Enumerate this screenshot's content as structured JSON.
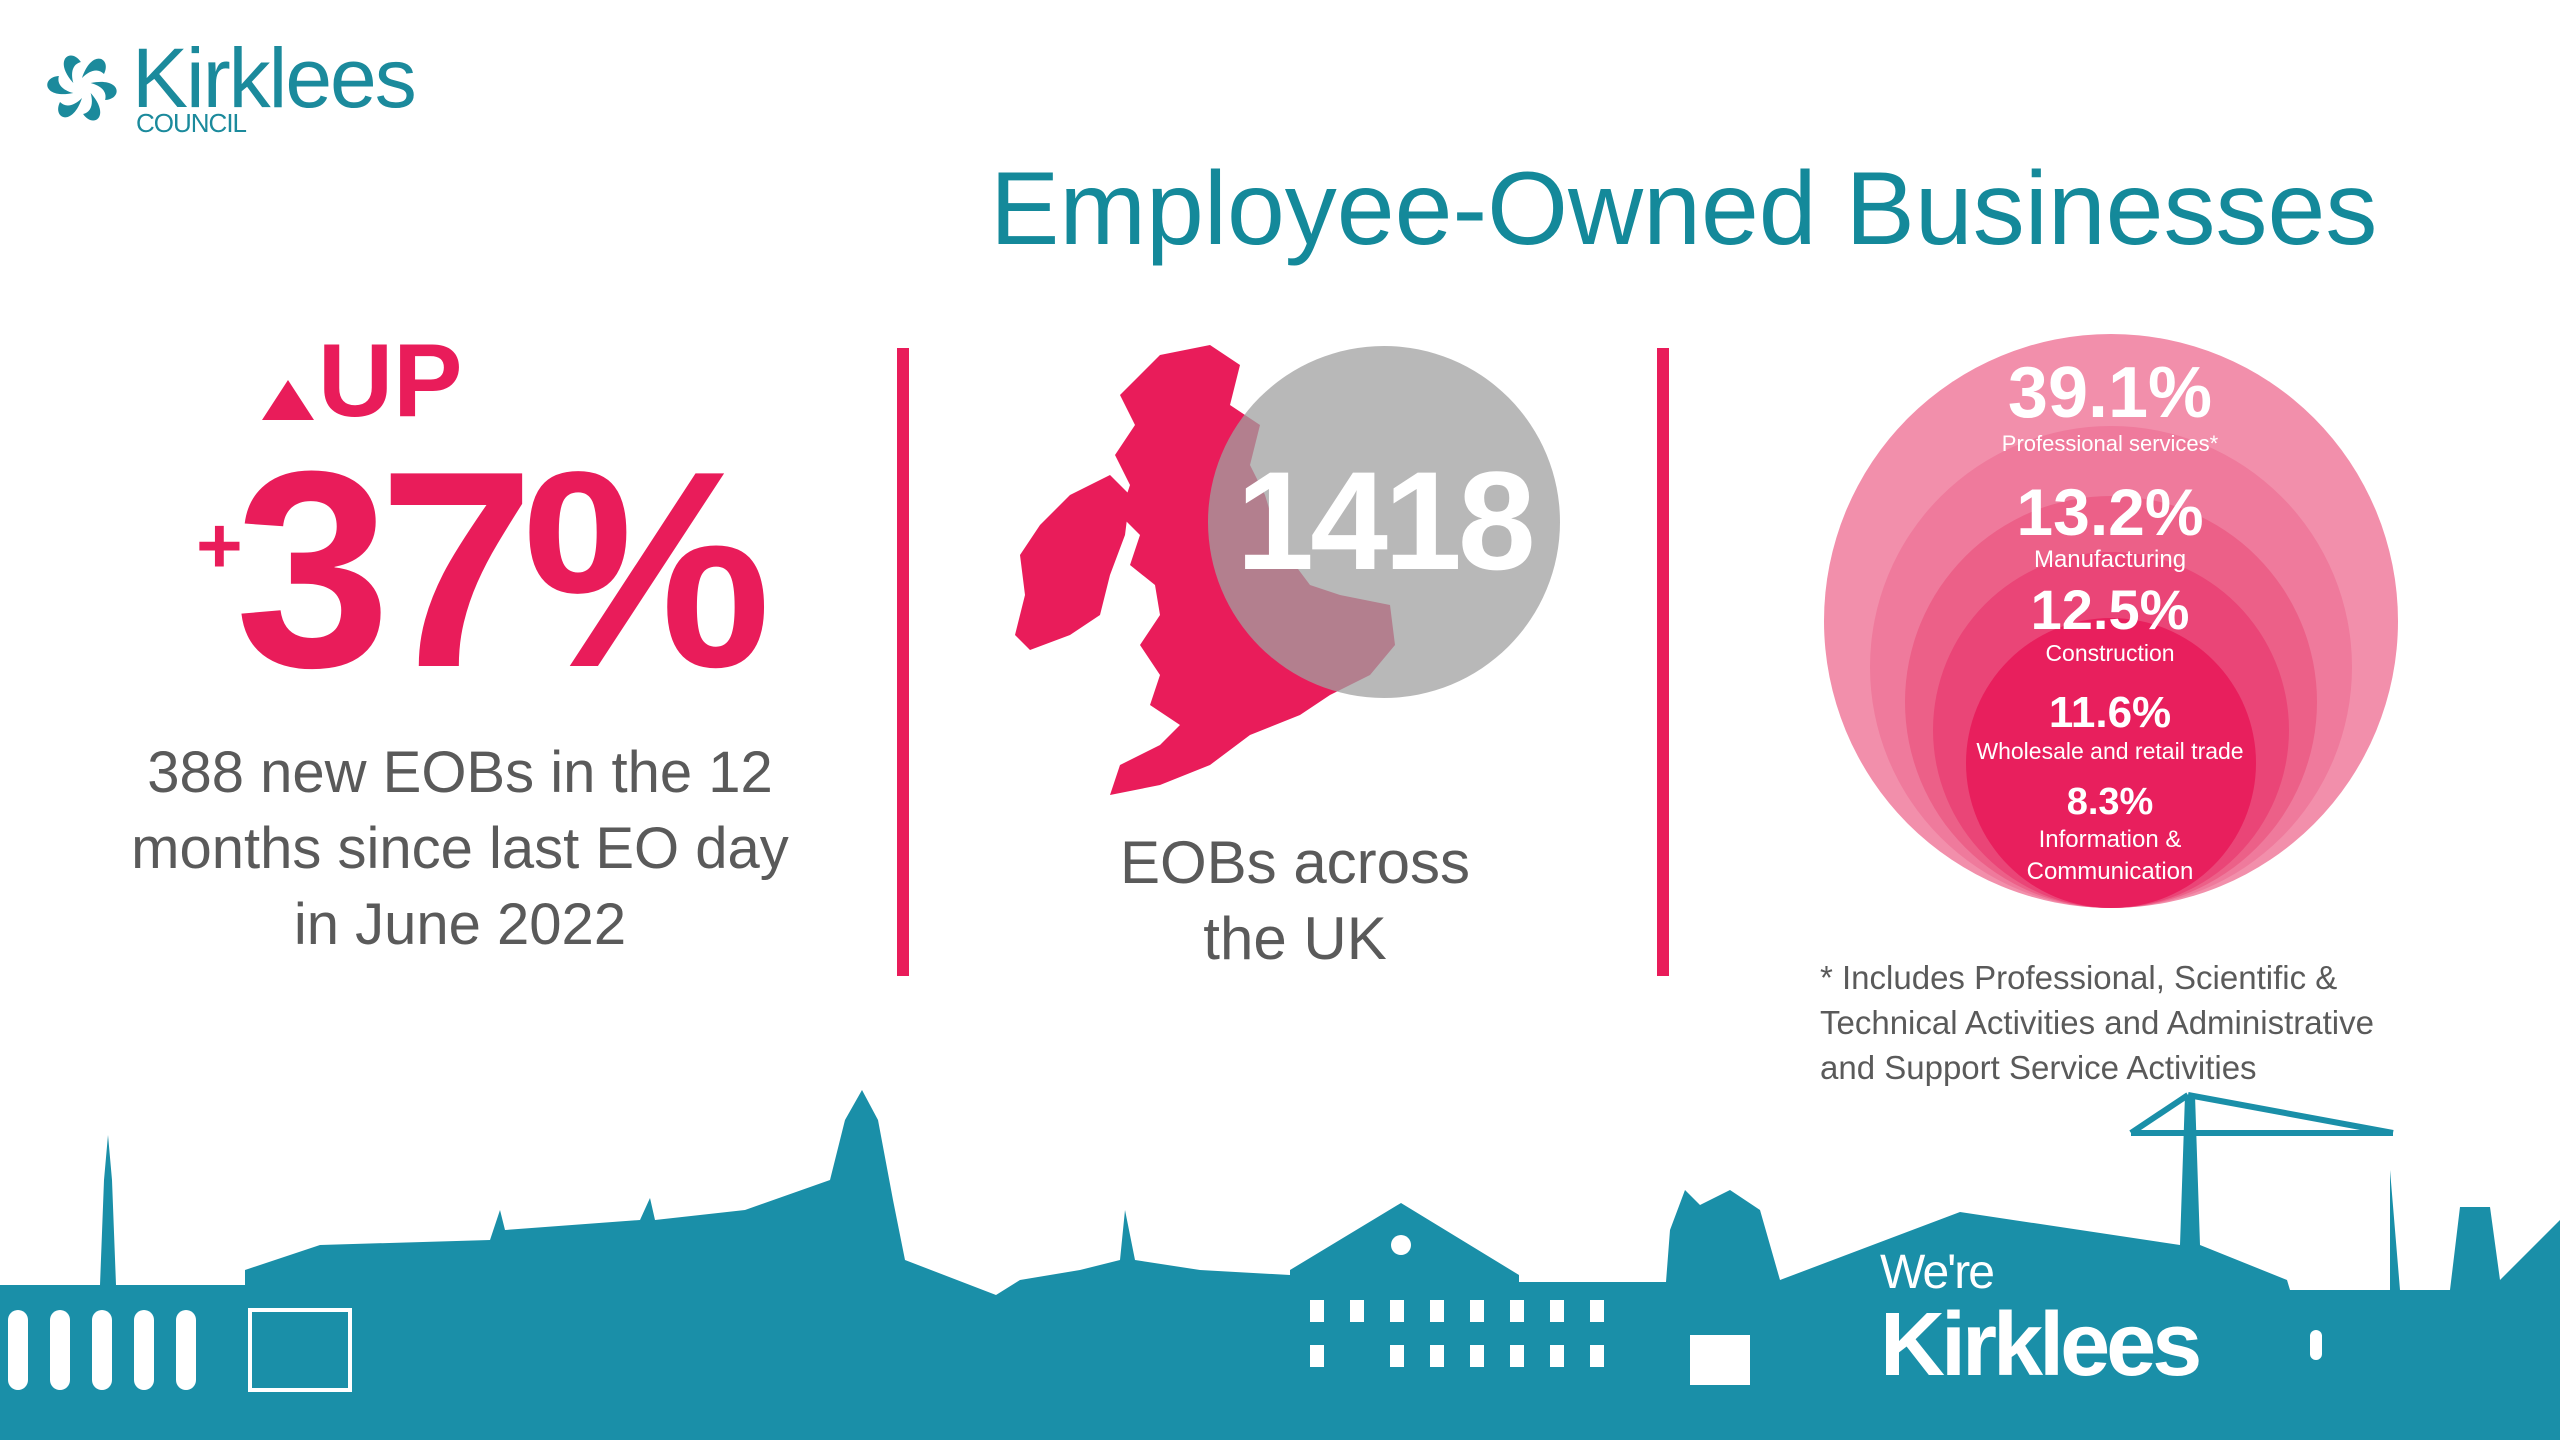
{
  "logo": {
    "name": "Kirklees",
    "subtitle": "COUNCIL"
  },
  "title": "Employee-Owned Businesses",
  "growth": {
    "direction_label": "UP",
    "plus": "+",
    "percent": "37%",
    "description": "388 new EOBs in the 12 months since last EO day in June 2022"
  },
  "uk": {
    "count": "1418",
    "description": "EOBs across the UK"
  },
  "sectors": [
    {
      "percent": "39.1%",
      "label": "Professional services*",
      "color": "#f28fab"
    },
    {
      "percent": "13.2%",
      "label": "Manufacturing",
      "color": "#ef7a9c"
    },
    {
      "percent": "12.5%",
      "label": "Construction",
      "color": "#ec6088"
    },
    {
      "percent": "11.6%",
      "label": "Wholesale and retail trade",
      "color": "#ea4577"
    },
    {
      "percent": "8.3%",
      "label": "Information & Communication",
      "color": "#e81f5d"
    }
  ],
  "footnote": "* Includes Professional, Scientific & Technical Activities and Administrative and Support Service Activities",
  "brand": {
    "line1": "We're",
    "line2": "Kirklees"
  },
  "colors": {
    "accent": "#e91c5a",
    "teal": "#1a8fa8",
    "text": "#5a5a5a"
  }
}
